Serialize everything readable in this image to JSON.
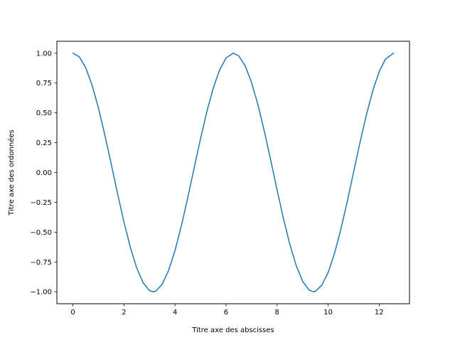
{
  "chart_data": {
    "type": "line",
    "title": "",
    "xlabel": "Titre axe des abscisses",
    "ylabel": "Titre axe des ordonnées",
    "xlim": [
      -0.63,
      13.19
    ],
    "ylim": [
      -1.1,
      1.1
    ],
    "x_ticks": [
      0,
      2,
      4,
      6,
      8,
      10,
      12
    ],
    "x_tick_labels": [
      "0",
      "2",
      "4",
      "6",
      "8",
      "10",
      "12"
    ],
    "y_ticks": [
      -1.0,
      -0.75,
      -0.5,
      -0.25,
      0.0,
      0.25,
      0.5,
      0.75,
      1.0
    ],
    "y_tick_labels": [
      "−1.00",
      "−0.75",
      "−0.50",
      "−0.25",
      "0.00",
      "0.25",
      "0.50",
      "0.75",
      "1.00"
    ],
    "grid": false,
    "legend": "none",
    "series": [
      {
        "color": "#1f77b4",
        "x": [
          0,
          0.25,
          0.5,
          0.75,
          1,
          1.25,
          1.5,
          1.75,
          2,
          2.25,
          2.5,
          2.75,
          3,
          3.142,
          3.25,
          3.5,
          3.75,
          4,
          4.25,
          4.5,
          4.75,
          5,
          5.25,
          5.5,
          5.75,
          6,
          6.283,
          6.5,
          6.75,
          7,
          7.25,
          7.5,
          7.75,
          8,
          8.25,
          8.5,
          8.75,
          9,
          9.25,
          9.425,
          9.5,
          9.75,
          10,
          10.25,
          10.5,
          10.75,
          11,
          11.25,
          11.5,
          11.75,
          12,
          12.25,
          12.566
        ],
        "y": [
          1.0,
          0.969,
          0.878,
          0.732,
          0.54,
          0.315,
          0.071,
          -0.178,
          -0.416,
          -0.628,
          -0.801,
          -0.924,
          -0.99,
          -1.0,
          -0.994,
          -0.936,
          -0.82,
          -0.654,
          -0.446,
          -0.211,
          0.038,
          0.284,
          0.512,
          0.709,
          0.861,
          0.96,
          1.0,
          0.977,
          0.894,
          0.754,
          0.568,
          0.347,
          0.104,
          -0.146,
          -0.386,
          -0.602,
          -0.78,
          -0.911,
          -0.985,
          -1.0,
          -0.997,
          -0.946,
          -0.839,
          -0.679,
          -0.476,
          -0.244,
          0.004,
          0.252,
          0.482,
          0.685,
          0.844,
          0.951,
          1.0
        ]
      }
    ]
  }
}
